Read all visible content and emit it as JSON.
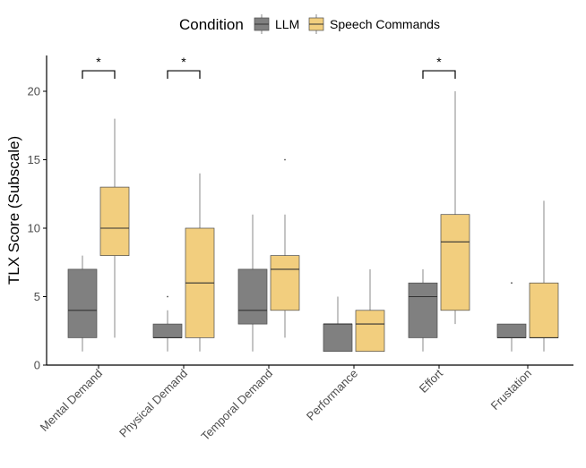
{
  "chart_data": {
    "type": "boxplot",
    "title": "",
    "xlabel": "",
    "ylabel": "TLX Score (Subscale)",
    "ylim": [
      0,
      22.5
    ],
    "yticks": [
      0,
      5,
      10,
      15,
      20
    ],
    "legend": {
      "title": "Condition",
      "placement": "top",
      "entries": [
        {
          "name": "LLM",
          "color": "#808080"
        },
        {
          "name": "Speech Commands",
          "color": "#f2ce7e"
        }
      ]
    },
    "categories": [
      "Mental Demand",
      "Physical Demand",
      "Temporal Demand",
      "Performance",
      "Effort",
      "Frustation"
    ],
    "series": [
      {
        "name": "LLM",
        "color": "#808080",
        "boxes": [
          {
            "whisker_low": 1,
            "q1": 2,
            "median": 4,
            "q3": 7,
            "whisker_high": 8,
            "outliers": []
          },
          {
            "whisker_low": 1,
            "q1": 2,
            "median": 2,
            "q3": 3,
            "whisker_high": 4,
            "outliers": [
              5
            ]
          },
          {
            "whisker_low": 1,
            "q1": 3,
            "median": 4,
            "q3": 7,
            "whisker_high": 11,
            "outliers": []
          },
          {
            "whisker_low": 1,
            "q1": 1,
            "median": 3,
            "q3": 3,
            "whisker_high": 5,
            "outliers": []
          },
          {
            "whisker_low": 1,
            "q1": 2,
            "median": 5,
            "q3": 6,
            "whisker_high": 7,
            "outliers": []
          },
          {
            "whisker_low": 1,
            "q1": 2,
            "median": 2,
            "q3": 3,
            "whisker_high": 3,
            "outliers": [
              6
            ]
          }
        ]
      },
      {
        "name": "Speech Commands",
        "color": "#f2ce7e",
        "boxes": [
          {
            "whisker_low": 2,
            "q1": 8,
            "median": 10,
            "q3": 13,
            "whisker_high": 18,
            "outliers": []
          },
          {
            "whisker_low": 1,
            "q1": 2,
            "median": 6,
            "q3": 10,
            "whisker_high": 14,
            "outliers": []
          },
          {
            "whisker_low": 2,
            "q1": 4,
            "median": 7,
            "q3": 8,
            "whisker_high": 11,
            "outliers": [
              15
            ]
          },
          {
            "whisker_low": 1,
            "q1": 1,
            "median": 3,
            "q3": 4,
            "whisker_high": 7,
            "outliers": []
          },
          {
            "whisker_low": 3,
            "q1": 4,
            "median": 9,
            "q3": 11,
            "whisker_high": 20,
            "outliers": []
          },
          {
            "whisker_low": 1,
            "q1": 2,
            "median": 2,
            "q3": 6,
            "whisker_high": 12,
            "outliers": []
          }
        ]
      }
    ],
    "annotations": [
      {
        "category": "Mental Demand",
        "label": "*",
        "y": 21.5
      },
      {
        "category": "Physical Demand",
        "label": "*",
        "y": 21.5
      },
      {
        "category": "Effort",
        "label": "*",
        "y": 21.5
      }
    ]
  }
}
